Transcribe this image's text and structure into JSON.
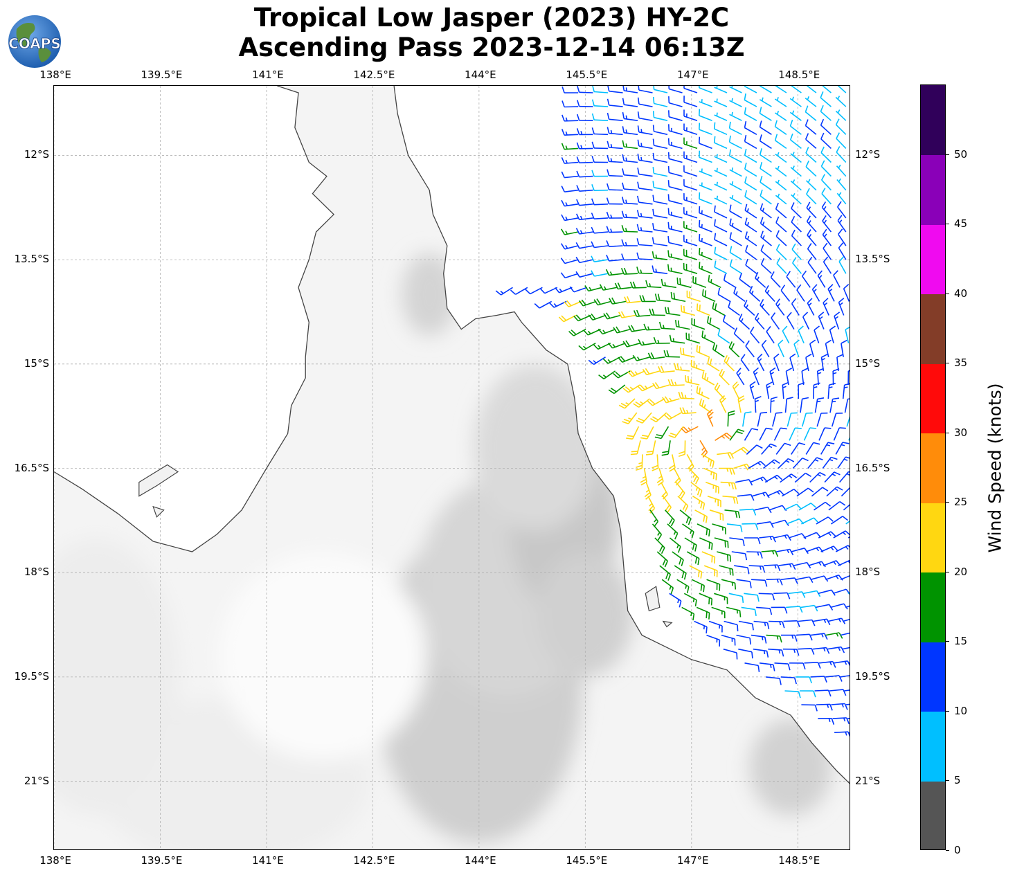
{
  "title": {
    "line1": "Tropical Low Jasper (2023) HY-2C",
    "line2": "Ascending Pass 2023-12-14 06:13Z"
  },
  "logo": {
    "text": "COAPS",
    "icon": "globe-icon",
    "ocean_color": "#1f5fb0",
    "land_color": "#5a8f3c"
  },
  "map": {
    "lon_range": [
      138.0,
      149.25
    ],
    "lat_range": [
      -22.0,
      -11.0
    ],
    "gridlines": true,
    "coastline_color": "#444444",
    "terrain": "grayscale elevation shading",
    "lon_ticks": [
      {
        "value": 138.0,
        "label": "138°E"
      },
      {
        "value": 139.5,
        "label": "139.5°E"
      },
      {
        "value": 141.0,
        "label": "141°E"
      },
      {
        "value": 142.5,
        "label": "142.5°E"
      },
      {
        "value": 144.0,
        "label": "144°E"
      },
      {
        "value": 145.5,
        "label": "145.5°E"
      },
      {
        "value": 147.0,
        "label": "147°E"
      },
      {
        "value": 148.5,
        "label": "148.5°E"
      }
    ],
    "lat_ticks": [
      {
        "value": -12.0,
        "label": "12°S"
      },
      {
        "value": -13.5,
        "label": "13.5°S"
      },
      {
        "value": -15.0,
        "label": "15°S"
      },
      {
        "value": -16.5,
        "label": "16.5°S"
      },
      {
        "value": -18.0,
        "label": "18°S"
      },
      {
        "value": -19.5,
        "label": "19.5°S"
      },
      {
        "value": -21.0,
        "label": "21°S"
      }
    ]
  },
  "colorbar": {
    "title": "Wind Speed (knots)",
    "min": 0,
    "max": 55,
    "tick_labels": [
      "0",
      "5",
      "10",
      "15",
      "20",
      "25",
      "30",
      "35",
      "40",
      "45",
      "50"
    ],
    "bins": [
      {
        "from": 0,
        "to": 5,
        "color": "#555555"
      },
      {
        "from": 5,
        "to": 10,
        "color": "#00bfff"
      },
      {
        "from": 10,
        "to": 15,
        "color": "#0036ff"
      },
      {
        "from": 15,
        "to": 20,
        "color": "#009300"
      },
      {
        "from": 20,
        "to": 25,
        "color": "#ffd711"
      },
      {
        "from": 25,
        "to": 30,
        "color": "#ff8c0a"
      },
      {
        "from": 30,
        "to": 35,
        "color": "#ff0a0a"
      },
      {
        "from": 35,
        "to": 40,
        "color": "#833d28"
      },
      {
        "from": 40,
        "to": 45,
        "color": "#f00af0"
      },
      {
        "from": 45,
        "to": 50,
        "color": "#8a00b8"
      },
      {
        "from": 50,
        "to": 55,
        "color": "#30005a"
      }
    ]
  },
  "chart_data": {
    "type": "scatter",
    "variable": "ocean surface wind barbs",
    "units": "knots",
    "wind_field": {
      "description": "cyclonic circulation over the Coral Sea east of Cape York",
      "center_lon": 147.2,
      "center_lat": -16.0,
      "swath_west_edge": [
        [
          144.2,
          -13.8
        ],
        [
          145.3,
          -14.2
        ],
        [
          146.2,
          -15.5
        ],
        [
          146.4,
          -17.0
        ],
        [
          146.6,
          -18.2
        ],
        [
          147.3,
          -19.0
        ],
        [
          148.2,
          -19.6
        ],
        [
          149.25,
          -20.5
        ]
      ],
      "swath_east_edge_lon": 149.25,
      "swath_north_edge_lat": -11.0,
      "speed_zones": [
        {
          "region": "far northeast",
          "lon": [
            147.2,
            149.0
          ],
          "lat": [
            -11.0,
            -12.8
          ],
          "speed_kt": 8
        },
        {
          "region": "northwest arc",
          "lon": [
            145.0,
            146.5
          ],
          "lat": [
            -11.0,
            -14.0
          ],
          "speed_kt": 12
        },
        {
          "region": "inner band",
          "lon": [
            146.0,
            147.5
          ],
          "lat": [
            -12.5,
            -17.5
          ],
          "speed_kt": 18
        },
        {
          "region": "core",
          "lon": [
            146.5,
            147.6
          ],
          "lat": [
            -14.5,
            -16.7
          ],
          "speed_kt": 22
        },
        {
          "region": "peak",
          "lon": [
            147.35
          ],
          "lat": [
            -16.0
          ],
          "speed_kt": 27
        },
        {
          "region": "southeast",
          "lon": [
            147.5,
            149.25
          ],
          "lat": [
            -16.5,
            -20.5
          ],
          "speed_kt": 12
        }
      ]
    }
  }
}
